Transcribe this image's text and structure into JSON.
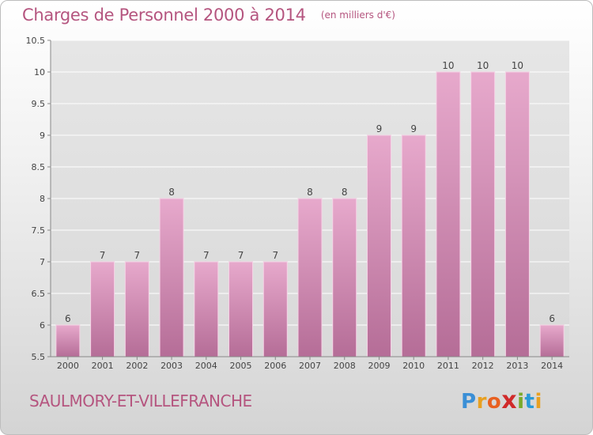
{
  "header": {
    "title": "Charges de Personnel 2000 à 2014",
    "subtitle": "(en milliers d'€)"
  },
  "footer": {
    "town": "SAULMORY-ET-VILLEFRANCHE",
    "logo_letters": [
      "P",
      "r",
      "o",
      "x",
      "i",
      "t",
      "i"
    ],
    "logo_colors": [
      "#3a8fd6",
      "#e8a020",
      "#e86020",
      "#d02a2a",
      "#7aaa2a",
      "#2a9ad6",
      "#e8a020"
    ]
  },
  "chart_data": {
    "type": "bar",
    "categories": [
      "2000",
      "2001",
      "2002",
      "2003",
      "2004",
      "2005",
      "2006",
      "2007",
      "2008",
      "2009",
      "2010",
      "2011",
      "2012",
      "2013",
      "2014"
    ],
    "values": [
      6,
      7,
      7,
      8,
      7,
      7,
      7,
      8,
      8,
      9,
      9,
      10,
      10,
      10,
      6
    ],
    "data_labels": [
      "6",
      "7",
      "7",
      "8",
      "7",
      "7",
      "7",
      "8",
      "8",
      "9",
      "9",
      "10",
      "10",
      "10",
      "6"
    ],
    "yticks": [
      "5.5",
      "6",
      "6.5",
      "7",
      "7.5",
      "8",
      "8.5",
      "9",
      "9.5",
      "10",
      "10.5"
    ],
    "ylim": [
      5.5,
      10.5
    ],
    "grid": true,
    "colors": {
      "bar_top": "#e7a9cc",
      "bar_bottom": "#b56d97",
      "bar_edge": "#f6d3e6",
      "grid": "#ffffff",
      "plot_bg_top": "#e6e6e6",
      "plot_bg_bottom": "#d9d9d9",
      "axis": "#888888",
      "text": "#444444"
    }
  }
}
